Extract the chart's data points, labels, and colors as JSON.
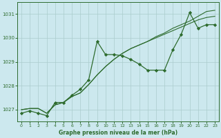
{
  "bg_color": "#cce8ee",
  "grid_color": "#aacccc",
  "line_color": "#2d6b2d",
  "xlim": [
    -0.5,
    23.5
  ],
  "ylim": [
    1026.5,
    1031.5
  ],
  "yticks": [
    1027,
    1028,
    1029,
    1030,
    1031
  ],
  "xticks": [
    0,
    1,
    2,
    3,
    4,
    5,
    6,
    7,
    8,
    9,
    10,
    11,
    12,
    13,
    14,
    15,
    16,
    17,
    18,
    19,
    20,
    21,
    22,
    23
  ],
  "xlabel": "Graphe pression niveau de la mer (hPa)",
  "series1": [
    1026.85,
    1026.95,
    1026.85,
    1026.75,
    1027.3,
    1027.3,
    1027.6,
    1027.85,
    1028.25,
    1029.85,
    1029.3,
    1029.3,
    1029.25,
    1029.1,
    1028.9,
    1028.65,
    1028.65,
    1028.65,
    1029.5,
    1030.15,
    1031.05,
    1030.4,
    1030.55,
    1030.55
  ],
  "series2": [
    1027.0,
    1027.05,
    1027.05,
    1026.85,
    1027.2,
    1027.3,
    1027.55,
    1027.7,
    1028.05,
    1028.45,
    1028.8,
    1029.1,
    1029.35,
    1029.55,
    1029.7,
    1029.85,
    1030.0,
    1030.15,
    1030.3,
    1030.45,
    1030.6,
    1030.75,
    1030.85,
    1030.9
  ],
  "series3": [
    1027.0,
    1027.05,
    1027.05,
    1026.85,
    1027.2,
    1027.3,
    1027.55,
    1027.7,
    1028.05,
    1028.45,
    1028.8,
    1029.1,
    1029.35,
    1029.55,
    1029.7,
    1029.85,
    1030.05,
    1030.2,
    1030.4,
    1030.55,
    1030.7,
    1030.9,
    1031.1,
    1031.15
  ]
}
